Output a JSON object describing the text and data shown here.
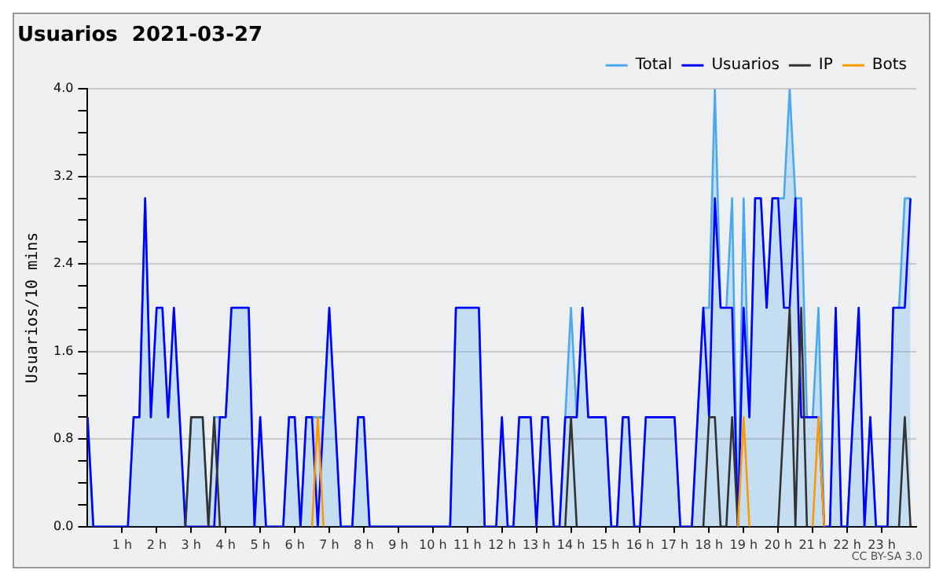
{
  "chart_data": {
    "type": "line",
    "title": "Usuarios  2021-03-27",
    "ylabel": "Usuarios/10 mins",
    "annotations": [
      "CC BY-SA 3.0"
    ],
    "x": [
      0,
      0.167,
      0.333,
      0.5,
      0.667,
      0.833,
      1,
      1.167,
      1.333,
      1.5,
      1.667,
      1.833,
      2,
      2.167,
      2.333,
      2.5,
      2.667,
      2.833,
      3,
      3.167,
      3.333,
      3.5,
      3.667,
      3.833,
      4,
      4.167,
      4.333,
      4.5,
      4.667,
      4.833,
      5,
      5.167,
      5.333,
      5.5,
      5.667,
      5.833,
      6,
      6.167,
      6.333,
      6.5,
      6.667,
      6.833,
      7,
      7.167,
      7.333,
      7.5,
      7.667,
      7.833,
      8,
      8.167,
      8.333,
      8.5,
      8.667,
      8.833,
      9,
      9.167,
      9.333,
      9.5,
      9.667,
      9.833,
      10,
      10.167,
      10.333,
      10.5,
      10.667,
      10.833,
      11,
      11.167,
      11.333,
      11.5,
      11.667,
      11.833,
      12,
      12.167,
      12.333,
      12.5,
      12.667,
      12.833,
      13,
      13.167,
      13.333,
      13.5,
      13.667,
      13.833,
      14,
      14.167,
      14.333,
      14.5,
      14.667,
      14.833,
      15,
      15.167,
      15.333,
      15.5,
      15.667,
      15.833,
      16,
      16.167,
      16.333,
      16.5,
      16.667,
      16.833,
      17,
      17.167,
      17.333,
      17.5,
      17.667,
      17.833,
      18,
      18.167,
      18.333,
      18.5,
      18.667,
      18.833,
      19,
      19.167,
      19.333,
      19.5,
      19.667,
      19.833,
      20,
      20.167,
      20.333,
      20.5,
      20.667,
      20.833,
      21,
      21.167,
      21.333,
      21.5,
      21.667,
      21.833,
      22,
      22.167,
      22.333,
      22.5,
      22.667,
      22.833,
      23,
      23.167,
      23.333,
      23.5,
      23.667,
      23.833
    ],
    "series": [
      {
        "name": "Total",
        "type": "area",
        "color": "#4aa8f0",
        "values": [
          1,
          0,
          0,
          0,
          0,
          0,
          0,
          0,
          1,
          1,
          3,
          1,
          2,
          2,
          1,
          2,
          1,
          0,
          1,
          1,
          1,
          0,
          1,
          1,
          1,
          2,
          2,
          2,
          2,
          0,
          1,
          0,
          0,
          0,
          0,
          1,
          1,
          0,
          1,
          1,
          1,
          1,
          2,
          1,
          0,
          0,
          0,
          1,
          1,
          0,
          0,
          0,
          0,
          0,
          0,
          0,
          0,
          0,
          0,
          0,
          0,
          0,
          0,
          0,
          2,
          2,
          2,
          2,
          2,
          0,
          0,
          0,
          1,
          0,
          0,
          1,
          1,
          1,
          0,
          1,
          1,
          0,
          0,
          1,
          2,
          1,
          2,
          1,
          1,
          1,
          1,
          0,
          0,
          1,
          1,
          0,
          0,
          1,
          1,
          1,
          1,
          1,
          1,
          0,
          0,
          0,
          1,
          2,
          2,
          4,
          2,
          2,
          3,
          0,
          3,
          1,
          3,
          3,
          2,
          3,
          3,
          3,
          4,
          3,
          3,
          1,
          1,
          2,
          0,
          0,
          2,
          0,
          0,
          1,
          2,
          0,
          1,
          0,
          0,
          0,
          2,
          2,
          3,
          3
        ]
      },
      {
        "name": "Usuarios",
        "type": "line",
        "color": "#0000ff",
        "values": [
          1,
          0,
          0,
          0,
          0,
          0,
          0,
          0,
          1,
          1,
          3,
          1,
          2,
          2,
          1,
          2,
          1,
          0,
          0,
          0,
          0,
          0,
          0,
          1,
          1,
          2,
          2,
          2,
          2,
          0,
          1,
          0,
          0,
          0,
          0,
          1,
          1,
          0,
          1,
          1,
          0,
          1,
          2,
          1,
          0,
          0,
          0,
          1,
          1,
          0,
          0,
          0,
          0,
          0,
          0,
          0,
          0,
          0,
          0,
          0,
          0,
          0,
          0,
          0,
          2,
          2,
          2,
          2,
          2,
          0,
          0,
          0,
          1,
          0,
          0,
          1,
          1,
          1,
          0,
          1,
          1,
          0,
          0,
          1,
          1,
          1,
          2,
          1,
          1,
          1,
          1,
          0,
          0,
          1,
          1,
          0,
          0,
          1,
          1,
          1,
          1,
          1,
          1,
          0,
          0,
          0,
          1,
          2,
          1,
          3,
          2,
          2,
          2,
          0,
          2,
          1,
          3,
          3,
          2,
          3,
          3,
          2,
          2,
          3,
          1,
          1,
          1,
          1,
          0,
          0,
          2,
          0,
          0,
          1,
          2,
          0,
          1,
          0,
          0,
          0,
          2,
          2,
          2,
          3
        ]
      },
      {
        "name": "IP",
        "type": "line",
        "color": "#333333",
        "values": [
          null,
          null,
          null,
          null,
          null,
          null,
          null,
          null,
          null,
          null,
          null,
          null,
          null,
          null,
          null,
          null,
          null,
          0,
          1,
          1,
          1,
          0,
          1,
          0,
          null,
          null,
          null,
          null,
          null,
          null,
          null,
          null,
          null,
          null,
          null,
          null,
          null,
          null,
          null,
          null,
          null,
          null,
          null,
          null,
          null,
          null,
          null,
          null,
          null,
          null,
          null,
          null,
          null,
          null,
          null,
          null,
          null,
          null,
          null,
          null,
          null,
          null,
          null,
          null,
          null,
          null,
          null,
          null,
          null,
          null,
          null,
          null,
          null,
          null,
          null,
          null,
          null,
          null,
          null,
          null,
          null,
          null,
          null,
          0,
          1,
          0,
          null,
          null,
          null,
          null,
          null,
          null,
          null,
          null,
          null,
          null,
          null,
          null,
          null,
          null,
          null,
          null,
          null,
          null,
          null,
          null,
          null,
          0,
          1,
          1,
          0,
          0,
          1,
          0,
          null,
          null,
          null,
          null,
          null,
          null,
          0,
          1,
          2,
          0,
          2,
          0,
          null,
          null,
          null,
          null,
          null,
          null,
          null,
          null,
          null,
          null,
          null,
          null,
          null,
          null,
          null,
          0,
          1,
          0
        ]
      },
      {
        "name": "Bots",
        "type": "line",
        "color": "#ff9900",
        "values": [
          null,
          null,
          null,
          null,
          null,
          null,
          null,
          null,
          null,
          null,
          null,
          null,
          null,
          null,
          null,
          null,
          null,
          null,
          null,
          null,
          null,
          null,
          null,
          null,
          null,
          null,
          null,
          null,
          null,
          null,
          null,
          null,
          null,
          null,
          null,
          null,
          null,
          null,
          null,
          0,
          1,
          0,
          null,
          null,
          null,
          null,
          null,
          null,
          null,
          null,
          null,
          null,
          null,
          null,
          null,
          null,
          null,
          null,
          null,
          null,
          null,
          null,
          null,
          null,
          null,
          null,
          null,
          null,
          null,
          null,
          null,
          null,
          null,
          null,
          null,
          null,
          null,
          null,
          null,
          null,
          null,
          null,
          null,
          null,
          null,
          null,
          null,
          null,
          null,
          null,
          null,
          null,
          null,
          null,
          null,
          null,
          null,
          null,
          null,
          null,
          null,
          null,
          null,
          null,
          null,
          null,
          null,
          null,
          null,
          null,
          null,
          null,
          null,
          0,
          1,
          0,
          null,
          null,
          null,
          null,
          null,
          null,
          null,
          null,
          null,
          null,
          0,
          1,
          0,
          null,
          null,
          null,
          null,
          null,
          null,
          null,
          null,
          null,
          null,
          null,
          null,
          null,
          null,
          null
        ]
      }
    ],
    "xlim": [
      0,
      24
    ],
    "xticks": [
      {
        "value": 1,
        "label": "1 h"
      },
      {
        "value": 2,
        "label": "2 h"
      },
      {
        "value": 3,
        "label": "3 h"
      },
      {
        "value": 4,
        "label": "4 h"
      },
      {
        "value": 5,
        "label": "5 h"
      },
      {
        "value": 6,
        "label": "6 h"
      },
      {
        "value": 7,
        "label": "7 h"
      },
      {
        "value": 8,
        "label": "8 h"
      },
      {
        "value": 9,
        "label": "9 h"
      },
      {
        "value": 10,
        "label": "10 h"
      },
      {
        "value": 11,
        "label": "11 h"
      },
      {
        "value": 12,
        "label": "12 h"
      },
      {
        "value": 13,
        "label": "13 h"
      },
      {
        "value": 14,
        "label": "14 h"
      },
      {
        "value": 15,
        "label": "15 h"
      },
      {
        "value": 16,
        "label": "16 h"
      },
      {
        "value": 17,
        "label": "17 h"
      },
      {
        "value": 18,
        "label": "18 h"
      },
      {
        "value": 19,
        "label": "19 h"
      },
      {
        "value": 20,
        "label": "20 h"
      },
      {
        "value": 21,
        "label": "21 h"
      },
      {
        "value": 22,
        "label": "22 h"
      },
      {
        "value": 23,
        "label": "23 h"
      }
    ],
    "ylim": [
      0,
      4
    ],
    "yticks": [
      {
        "value": 0,
        "label": "0.0"
      },
      {
        "value": 0.2,
        "label": null
      },
      {
        "value": 0.4,
        "label": null
      },
      {
        "value": 0.6,
        "label": null
      },
      {
        "value": 0.8,
        "label": "0.8"
      },
      {
        "value": 1,
        "label": null
      },
      {
        "value": 1.2,
        "label": null
      },
      {
        "value": 1.4,
        "label": null
      },
      {
        "value": 1.6,
        "label": "1.6"
      },
      {
        "value": 1.8,
        "label": null
      },
      {
        "value": 2,
        "label": null
      },
      {
        "value": 2.2,
        "label": null
      },
      {
        "value": 2.4,
        "label": "2.4"
      },
      {
        "value": 2.6,
        "label": null
      },
      {
        "value": 2.8,
        "label": null
      },
      {
        "value": 3,
        "label": null
      },
      {
        "value": 3.2,
        "label": "3.2"
      },
      {
        "value": 3.4,
        "label": null
      },
      {
        "value": 3.6,
        "label": null
      },
      {
        "value": 3.8,
        "label": null
      },
      {
        "value": 4,
        "label": "4.0"
      }
    ],
    "grid": "y",
    "legend": "top right",
    "marker": "none",
    "line_style": "solid"
  }
}
